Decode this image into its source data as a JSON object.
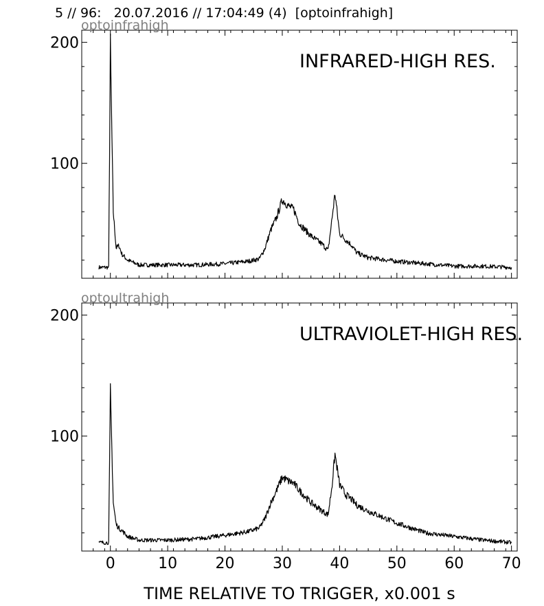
{
  "header": {
    "text": "5 // 96:   20.07.2016 // 17:04:49 (4)  [optoinfrahigh]"
  },
  "xlabel": "TIME RELATIVE TO TRIGGER,   x0.001 s",
  "colors": {
    "trace": "#000000",
    "channel_label": "#808080",
    "axes": "#000000"
  },
  "chart_data": [
    {
      "type": "line",
      "channel": "optoinfrahigh",
      "title": "INFRARED-HIGH RES.",
      "xlim": [
        -5,
        71
      ],
      "ylim": [
        5,
        210
      ],
      "x_ticks": [
        0,
        10,
        20,
        30,
        40,
        50,
        60,
        70
      ],
      "y_ticks": [
        100,
        200
      ],
      "grid": false,
      "series": [
        {
          "x": [
            -2,
            -1,
            -0.3,
            0,
            0.2,
            0.5,
            1,
            1.5,
            2,
            3,
            5,
            10,
            15,
            20,
            24,
            26,
            27,
            28,
            29,
            30,
            31,
            32,
            33,
            35,
            37,
            38,
            38.7,
            39.2,
            40,
            41,
            42,
            43,
            45,
            50,
            55,
            60,
            65,
            70
          ],
          "y": [
            14,
            14,
            14,
            200,
            140,
            60,
            30,
            32,
            25,
            20,
            16,
            16,
            16,
            17,
            19,
            21,
            30,
            45,
            55,
            70,
            65,
            62,
            50,
            40,
            33,
            28,
            55,
            75,
            42,
            37,
            33,
            26,
            22,
            19,
            17,
            15,
            15,
            14
          ]
        }
      ]
    },
    {
      "type": "line",
      "channel": "optoultrahigh",
      "title": "ULTRAVIOLET-HIGH RES.",
      "xlim": [
        -5,
        71
      ],
      "ylim": [
        5,
        210
      ],
      "x_ticks": [
        0,
        10,
        20,
        30,
        40,
        50,
        60,
        70
      ],
      "x_tick_labels": [
        "0",
        "10",
        "20",
        "30",
        "40",
        "50",
        "60",
        "70"
      ],
      "y_ticks": [
        100,
        200
      ],
      "grid": false,
      "series": [
        {
          "x": [
            -2,
            -1,
            -0.3,
            0,
            0.2,
            0.5,
            1,
            1.5,
            2,
            3,
            5,
            10,
            15,
            20,
            24,
            26,
            27,
            28,
            29,
            30,
            31,
            32,
            33,
            35,
            37,
            38,
            38.7,
            39.2,
            40,
            41,
            42,
            43,
            45,
            50,
            55,
            60,
            65,
            70
          ],
          "y": [
            12,
            12,
            12,
            138,
            100,
            45,
            27,
            24,
            22,
            17,
            14,
            14,
            15,
            18,
            21,
            24,
            32,
            45,
            55,
            66,
            63,
            61,
            55,
            45,
            38,
            35,
            60,
            85,
            60,
            52,
            48,
            43,
            38,
            28,
            20,
            17,
            14,
            12
          ]
        }
      ]
    }
  ]
}
